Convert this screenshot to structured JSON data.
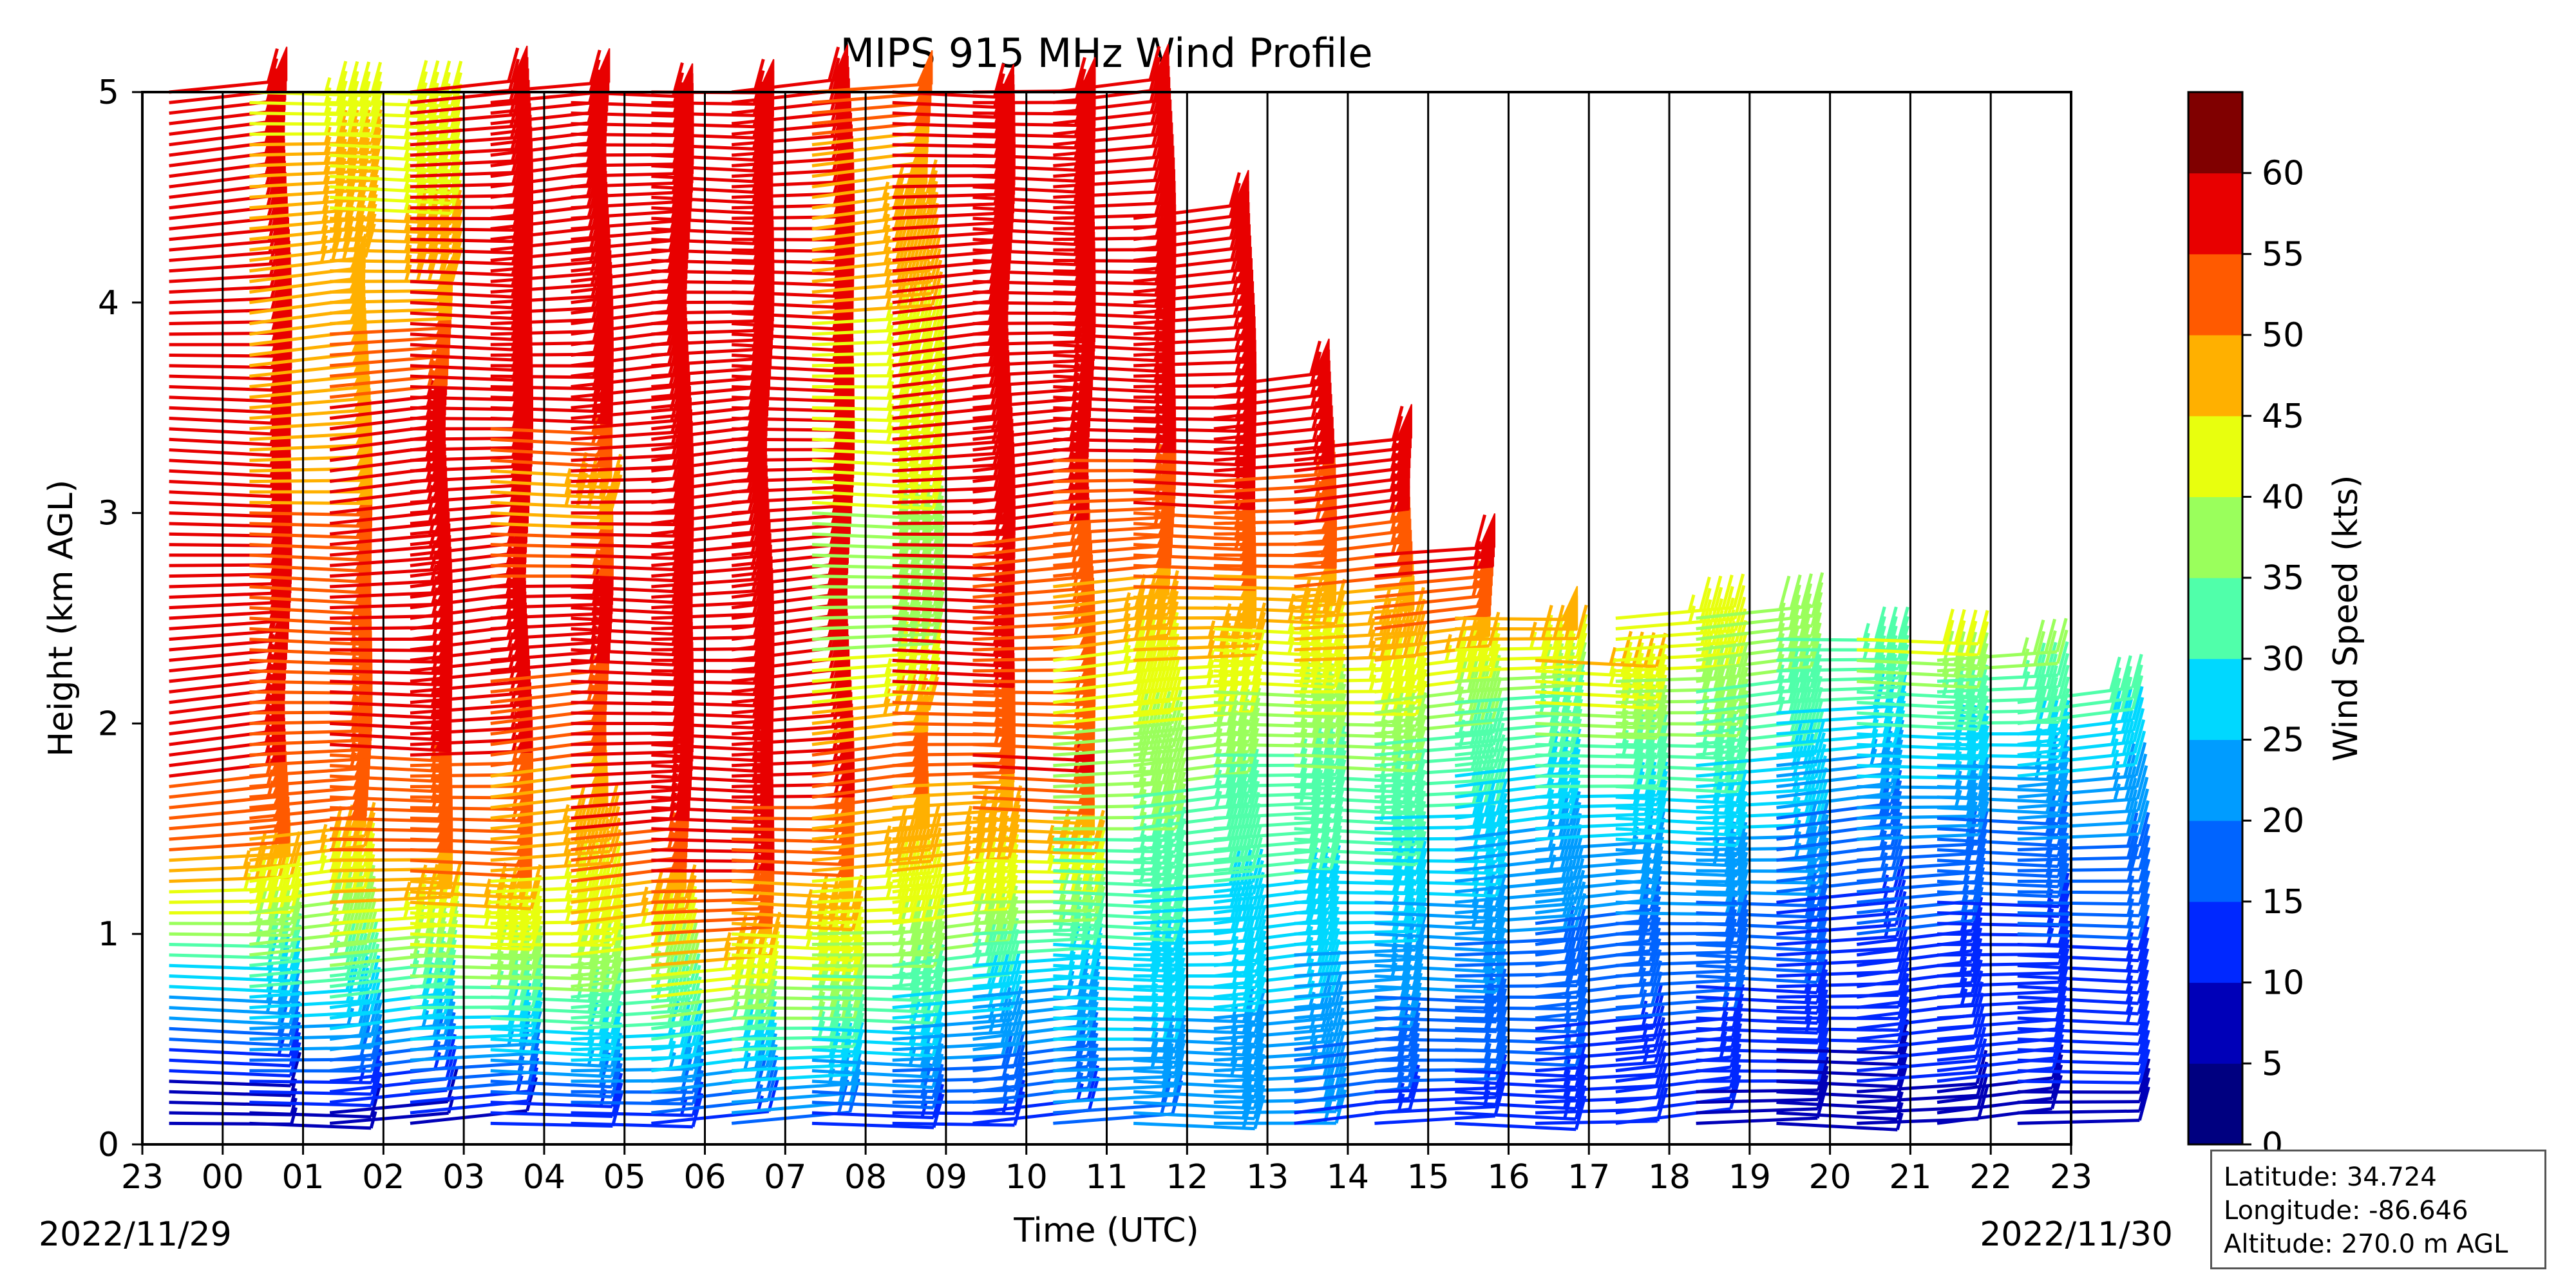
{
  "chart_data": {
    "type": "wind_barb_profile",
    "title": "MIPS 915 MHz Wind Profile",
    "xlabel": "Time (UTC)",
    "ylabel": "Height (km AGL)",
    "x_tick_labels": [
      "23",
      "00",
      "01",
      "02",
      "03",
      "04",
      "05",
      "06",
      "07",
      "08",
      "09",
      "10",
      "11",
      "12",
      "13",
      "14",
      "15",
      "16",
      "17",
      "18",
      "19",
      "20",
      "21",
      "22",
      "23"
    ],
    "y_ticks": [
      0,
      1,
      2,
      3,
      4,
      5
    ],
    "ylim": [
      0,
      5
    ],
    "start_date": "2022/11/29",
    "end_date": "2022/11/30",
    "colorbar": {
      "label": "Wind Speed (kts)",
      "ticks": [
        0,
        5,
        10,
        15,
        20,
        25,
        30,
        35,
        40,
        45,
        50,
        55,
        60
      ],
      "colors": [
        "#000080",
        "#0000b8",
        "#0028ff",
        "#0064ff",
        "#009cff",
        "#00d8ff",
        "#50ffaa",
        "#9aff5c",
        "#e8ff0e",
        "#ffb000",
        "#ff5a00",
        "#e80000",
        "#800000"
      ]
    },
    "profiles": [
      {
        "time": "23:20",
        "top_km": 5.0,
        "points": [
          [
            0.2,
            5
          ],
          [
            0.4,
            12
          ],
          [
            0.6,
            22
          ],
          [
            0.9,
            30
          ],
          [
            1.1,
            40
          ],
          [
            1.4,
            50
          ],
          [
            1.8,
            56
          ],
          [
            2.5,
            58
          ],
          [
            3.5,
            59
          ],
          [
            5.0,
            60
          ]
        ]
      },
      {
        "time": "00:20",
        "top_km": 5.0,
        "points": [
          [
            0.1,
            6
          ],
          [
            0.3,
            14
          ],
          [
            0.6,
            26
          ],
          [
            0.9,
            35
          ],
          [
            1.2,
            42
          ],
          [
            1.5,
            50
          ],
          [
            1.8,
            53
          ],
          [
            2.0,
            55
          ],
          [
            3.0,
            50
          ],
          [
            4.0,
            48
          ],
          [
            5.0,
            44
          ]
        ]
      },
      {
        "time": "01:20",
        "top_km": 5.0,
        "points": [
          [
            0.1,
            6
          ],
          [
            0.3,
            14
          ],
          [
            0.6,
            28
          ],
          [
            0.9,
            38
          ],
          [
            1.2,
            48
          ],
          [
            1.6,
            53
          ],
          [
            1.9,
            55
          ],
          [
            2.6,
            57
          ],
          [
            3.5,
            55
          ],
          [
            4.2,
            46
          ],
          [
            5.0,
            42
          ]
        ]
      },
      {
        "time": "02:20",
        "top_km": 5.0,
        "points": [
          [
            0.1,
            8
          ],
          [
            0.4,
            22
          ],
          [
            0.7,
            32
          ],
          [
            1.0,
            42
          ],
          [
            1.3,
            50
          ],
          [
            1.7,
            54
          ],
          [
            2.0,
            56
          ],
          [
            3.0,
            58
          ],
          [
            4.0,
            59
          ],
          [
            5.0,
            59
          ]
        ]
      },
      {
        "time": "03:20",
        "top_km": 5.0,
        "points": [
          [
            0.1,
            10
          ],
          [
            0.4,
            24
          ],
          [
            0.7,
            34
          ],
          [
            1.0,
            42
          ],
          [
            1.4,
            46
          ],
          [
            1.8,
            50
          ],
          [
            2.5,
            58
          ],
          [
            3.1,
            46
          ],
          [
            3.5,
            58
          ],
          [
            5.0,
            59
          ]
        ]
      },
      {
        "time": "04:20",
        "top_km": 5.0,
        "points": [
          [
            0.1,
            10
          ],
          [
            0.4,
            26
          ],
          [
            0.7,
            34
          ],
          [
            1.0,
            44
          ],
          [
            1.4,
            54
          ],
          [
            1.7,
            57
          ],
          [
            2.0,
            58
          ],
          [
            3.0,
            59
          ],
          [
            5.0,
            60
          ]
        ]
      },
      {
        "time": "05:20",
        "top_km": 5.0,
        "points": [
          [
            0.1,
            14
          ],
          [
            0.4,
            28
          ],
          [
            0.7,
            40
          ],
          [
            1.0,
            50
          ],
          [
            1.3,
            55
          ],
          [
            1.7,
            57
          ],
          [
            2.5,
            59
          ],
          [
            5.0,
            60
          ]
        ]
      },
      {
        "time": "06:20",
        "top_km": 5.0,
        "points": [
          [
            0.1,
            18
          ],
          [
            0.4,
            30
          ],
          [
            0.8,
            40
          ],
          [
            1.1,
            46
          ],
          [
            1.4,
            52
          ],
          [
            1.7,
            56
          ],
          [
            2.0,
            58
          ],
          [
            3.0,
            59
          ],
          [
            5.0,
            60
          ]
        ]
      },
      {
        "time": "07:20",
        "top_km": 5.0,
        "points": [
          [
            0.1,
            10
          ],
          [
            0.3,
            20
          ],
          [
            0.6,
            30
          ],
          [
            0.9,
            36
          ],
          [
            1.2,
            44
          ],
          [
            1.6,
            50
          ],
          [
            1.8,
            52
          ],
          [
            2.4,
            38
          ],
          [
            3.0,
            40
          ],
          [
            3.5,
            44
          ],
          [
            4.3,
            46
          ],
          [
            5.0,
            52
          ]
        ]
      },
      {
        "time": "08:20",
        "top_km": 5.0,
        "points": [
          [
            0.1,
            12
          ],
          [
            0.3,
            18
          ],
          [
            0.6,
            26
          ],
          [
            0.9,
            36
          ],
          [
            1.2,
            44
          ],
          [
            1.6,
            48
          ],
          [
            1.9,
            53
          ],
          [
            2.2,
            55
          ],
          [
            3.0,
            58
          ],
          [
            5.0,
            60
          ]
        ]
      },
      {
        "time": "09:20",
        "top_km": 5.0,
        "points": [
          [
            0.1,
            12
          ],
          [
            0.3,
            18
          ],
          [
            0.6,
            22
          ],
          [
            0.9,
            30
          ],
          [
            1.2,
            40
          ],
          [
            1.5,
            48
          ],
          [
            1.8,
            56
          ],
          [
            2.2,
            52
          ],
          [
            2.6,
            53
          ],
          [
            3.0,
            56
          ],
          [
            4.0,
            58
          ],
          [
            5.0,
            60
          ]
        ]
      },
      {
        "time": "10:20",
        "top_km": 5.0,
        "points": [
          [
            0.1,
            18
          ],
          [
            0.4,
            24
          ],
          [
            0.8,
            28
          ],
          [
            1.2,
            32
          ],
          [
            1.6,
            36
          ],
          [
            2.0,
            40
          ],
          [
            2.4,
            46
          ],
          [
            2.8,
            52
          ],
          [
            3.4,
            56
          ],
          [
            4.0,
            58
          ],
          [
            5.0,
            60
          ]
        ]
      },
      {
        "time": "11:20",
        "top_km": 4.4,
        "points": [
          [
            0.1,
            20
          ],
          [
            0.5,
            24
          ],
          [
            1.0,
            28
          ],
          [
            1.5,
            32
          ],
          [
            1.9,
            38
          ],
          [
            2.2,
            44
          ],
          [
            2.6,
            50
          ],
          [
            3.0,
            55
          ],
          [
            3.6,
            57
          ],
          [
            4.4,
            58
          ]
        ]
      },
      {
        "time": "12:20",
        "top_km": 3.6,
        "points": [
          [
            0.1,
            20
          ],
          [
            0.5,
            24
          ],
          [
            1.0,
            28
          ],
          [
            1.5,
            32
          ],
          [
            2.0,
            36
          ],
          [
            2.3,
            42
          ],
          [
            2.6,
            48
          ],
          [
            3.0,
            54
          ],
          [
            3.6,
            58
          ]
        ]
      },
      {
        "time": "13:20",
        "top_km": 3.3,
        "points": [
          [
            0.1,
            14
          ],
          [
            0.5,
            20
          ],
          [
            1.0,
            26
          ],
          [
            1.5,
            32
          ],
          [
            1.9,
            36
          ],
          [
            2.2,
            44
          ],
          [
            2.5,
            48
          ],
          [
            2.8,
            54
          ],
          [
            3.3,
            58
          ]
        ]
      },
      {
        "time": "14:20",
        "top_km": 2.8,
        "points": [
          [
            0.1,
            12
          ],
          [
            0.5,
            18
          ],
          [
            1.0,
            22
          ],
          [
            1.4,
            28
          ],
          [
            1.8,
            32
          ],
          [
            2.1,
            38
          ],
          [
            2.4,
            50
          ],
          [
            2.8,
            58
          ]
        ]
      },
      {
        "time": "15:20",
        "top_km": 2.5,
        "points": [
          [
            0.1,
            12
          ],
          [
            0.5,
            16
          ],
          [
            1.0,
            20
          ],
          [
            1.4,
            24
          ],
          [
            1.8,
            30
          ],
          [
            2.1,
            34
          ],
          [
            2.5,
            50
          ]
        ]
      },
      {
        "time": "16:20",
        "top_km": 2.3,
        "points": [
          [
            0.1,
            10
          ],
          [
            0.5,
            14
          ],
          [
            0.9,
            18
          ],
          [
            1.3,
            22
          ],
          [
            1.6,
            28
          ],
          [
            1.9,
            34
          ],
          [
            2.3,
            46
          ]
        ]
      },
      {
        "time": "17:20",
        "top_km": 2.5,
        "points": [
          [
            0.1,
            10
          ],
          [
            0.5,
            14
          ],
          [
            0.9,
            18
          ],
          [
            1.3,
            22
          ],
          [
            1.6,
            28
          ],
          [
            2.0,
            36
          ],
          [
            2.5,
            44
          ]
        ]
      },
      {
        "time": "18:20",
        "top_km": 2.5,
        "points": [
          [
            0.1,
            8
          ],
          [
            0.5,
            12
          ],
          [
            0.9,
            16
          ],
          [
            1.3,
            22
          ],
          [
            1.7,
            28
          ],
          [
            2.1,
            34
          ],
          [
            2.5,
            38
          ]
        ]
      },
      {
        "time": "19:20",
        "top_km": 2.4,
        "points": [
          [
            0.1,
            6
          ],
          [
            0.5,
            10
          ],
          [
            0.9,
            12
          ],
          [
            1.3,
            16
          ],
          [
            1.7,
            22
          ],
          [
            2.1,
            30
          ],
          [
            2.4,
            34
          ]
        ]
      },
      {
        "time": "20:20",
        "top_km": 2.4,
        "points": [
          [
            0.1,
            8
          ],
          [
            0.5,
            12
          ],
          [
            0.9,
            14
          ],
          [
            1.3,
            18
          ],
          [
            1.7,
            24
          ],
          [
            2.1,
            32
          ],
          [
            2.4,
            42
          ]
        ]
      },
      {
        "time": "21:20",
        "top_km": 2.3,
        "points": [
          [
            0.1,
            8
          ],
          [
            0.5,
            12
          ],
          [
            0.9,
            12
          ],
          [
            1.3,
            16
          ],
          [
            1.7,
            22
          ],
          [
            2.0,
            30
          ],
          [
            2.3,
            36
          ]
        ]
      },
      {
        "time": "22:20",
        "top_km": 2.1,
        "points": [
          [
            0.1,
            8
          ],
          [
            0.5,
            12
          ],
          [
            0.9,
            14
          ],
          [
            1.3,
            18
          ],
          [
            1.7,
            24
          ],
          [
            2.1,
            32
          ]
        ]
      }
    ]
  },
  "info": {
    "latitude": "Latitude: 34.724",
    "longitude": "Longitude: -86.646",
    "altitude": "Altitude: 270.0 m AGL"
  }
}
